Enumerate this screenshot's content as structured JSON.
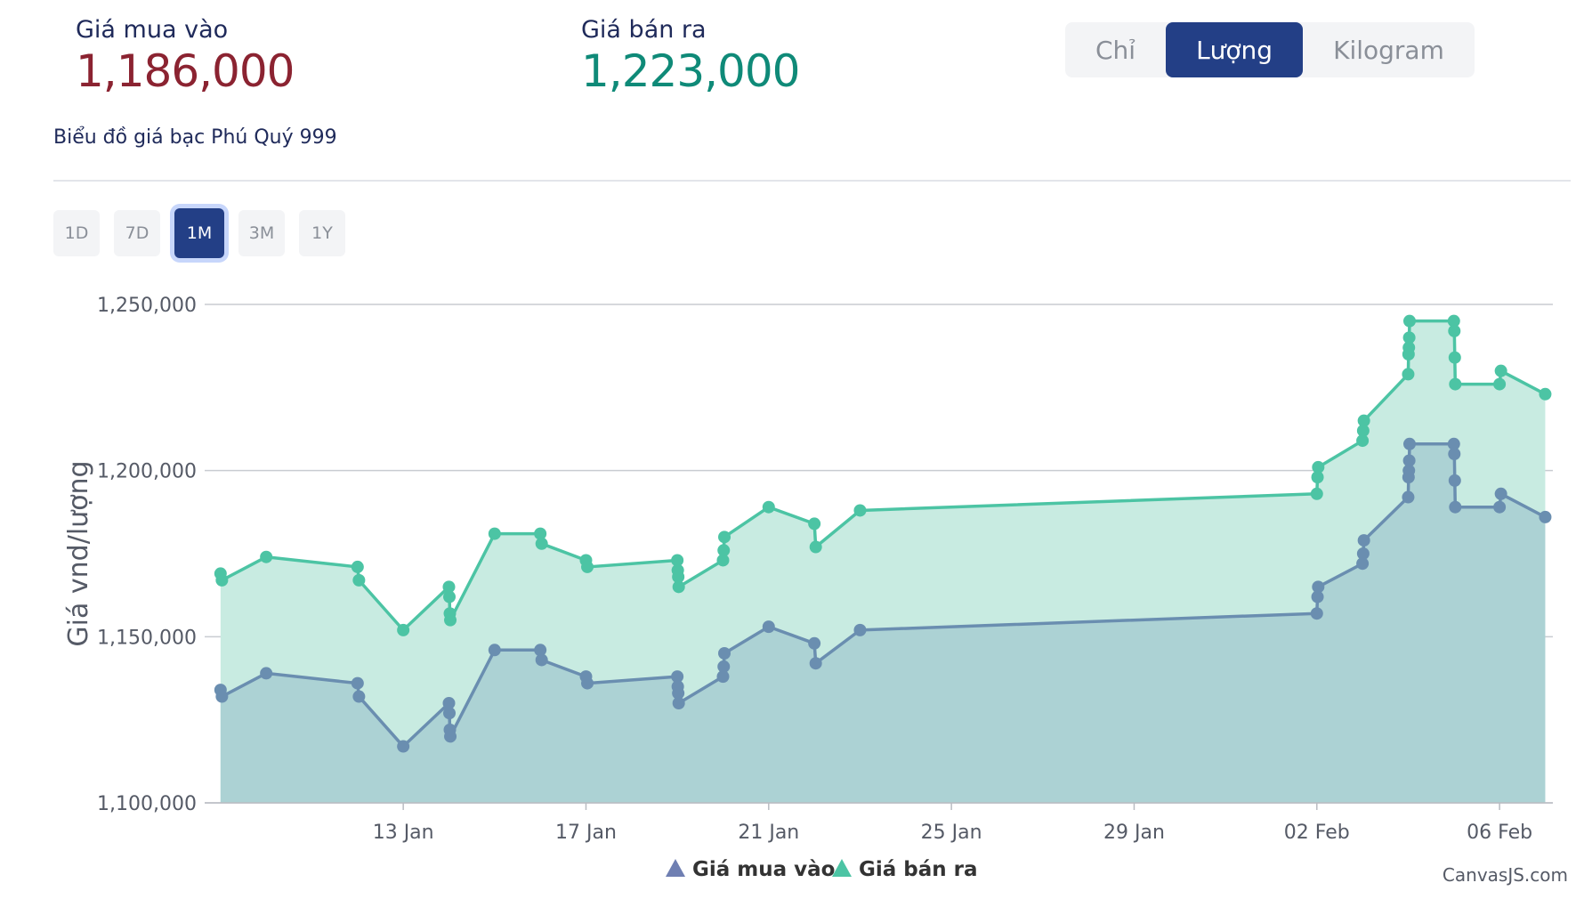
{
  "buy": {
    "label": "Giá mua vào",
    "value": "1,186,000"
  },
  "sell": {
    "label": "Giá bán ra",
    "value": "1,223,000"
  },
  "units": [
    {
      "label": "Chỉ",
      "active": false
    },
    {
      "label": "Lượng",
      "active": true
    },
    {
      "label": "Kilogram",
      "active": false
    }
  ],
  "chart_title": "Biểu đồ giá bạc Phú Quý 999",
  "ranges": [
    {
      "label": "1D",
      "active": false
    },
    {
      "label": "7D",
      "active": false
    },
    {
      "label": "1M",
      "active": true
    },
    {
      "label": "3M",
      "active": false
    },
    {
      "label": "1Y",
      "active": false
    }
  ],
  "credit": "CanvasJS.com",
  "colors": {
    "buy": "#6a8eb0",
    "buy_fill": "#a9cfd3",
    "sell": "#4cc4a4",
    "sell_fill": "#c8ebe1",
    "buy_legend": "#6f7fb2"
  },
  "chart_data": {
    "type": "area",
    "ylabel": "Giá vnd/lượng",
    "ylim": [
      1100000,
      1250000
    ],
    "yticks": [
      "1,100,000",
      "1,150,000",
      "1,200,000",
      "1,250,000"
    ],
    "xticks": [
      "13 Jan",
      "17 Jan",
      "21 Jan",
      "25 Jan",
      "29 Jan",
      "02 Feb",
      "06 Feb"
    ],
    "legend": [
      "Giá mua vào",
      "Giá bán ra"
    ],
    "legend_position": "bottom",
    "grid": true,
    "series": [
      {
        "name": "Giá mua vào",
        "points": [
          [
            "2026-01-09",
            1134000
          ],
          [
            "2026-01-09",
            1132000
          ],
          [
            "2026-01-10",
            1139000
          ],
          [
            "2026-01-12",
            1136000
          ],
          [
            "2026-01-12",
            1132000
          ],
          [
            "2026-01-13",
            1117000
          ],
          [
            "2026-01-14",
            1130000
          ],
          [
            "2026-01-14",
            1127000
          ],
          [
            "2026-01-14",
            1122000
          ],
          [
            "2026-01-14",
            1120000
          ],
          [
            "2026-01-15",
            1146000
          ],
          [
            "2026-01-16",
            1146000
          ],
          [
            "2026-01-16",
            1143000
          ],
          [
            "2026-01-17",
            1138000
          ],
          [
            "2026-01-17",
            1136000
          ],
          [
            "2026-01-19",
            1138000
          ],
          [
            "2026-01-19",
            1135000
          ],
          [
            "2026-01-19",
            1133000
          ],
          [
            "2026-01-19",
            1130000
          ],
          [
            "2026-01-20",
            1138000
          ],
          [
            "2026-01-20",
            1141000
          ],
          [
            "2026-01-20",
            1145000
          ],
          [
            "2026-01-21",
            1153000
          ],
          [
            "2026-01-22",
            1148000
          ],
          [
            "2026-01-22",
            1142000
          ],
          [
            "2026-01-23",
            1152000
          ],
          [
            "2026-02-02",
            1157000
          ],
          [
            "2026-02-02",
            1162000
          ],
          [
            "2026-02-02",
            1165000
          ],
          [
            "2026-02-03",
            1172000
          ],
          [
            "2026-02-03",
            1175000
          ],
          [
            "2026-02-03",
            1179000
          ],
          [
            "2026-02-04",
            1192000
          ],
          [
            "2026-02-04",
            1198000
          ],
          [
            "2026-02-04",
            1200000
          ],
          [
            "2026-02-04",
            1203000
          ],
          [
            "2026-02-04",
            1208000
          ],
          [
            "2026-02-05",
            1208000
          ],
          [
            "2026-02-05",
            1205000
          ],
          [
            "2026-02-05",
            1197000
          ],
          [
            "2026-02-05",
            1189000
          ],
          [
            "2026-02-06",
            1189000
          ],
          [
            "2026-02-06",
            1193000
          ],
          [
            "2026-02-07",
            1186000
          ]
        ]
      },
      {
        "name": "Giá bán ra",
        "points": [
          [
            "2026-01-09",
            1169000
          ],
          [
            "2026-01-09",
            1167000
          ],
          [
            "2026-01-10",
            1174000
          ],
          [
            "2026-01-12",
            1171000
          ],
          [
            "2026-01-12",
            1167000
          ],
          [
            "2026-01-13",
            1152000
          ],
          [
            "2026-01-14",
            1165000
          ],
          [
            "2026-01-14",
            1162000
          ],
          [
            "2026-01-14",
            1157000
          ],
          [
            "2026-01-14",
            1155000
          ],
          [
            "2026-01-15",
            1181000
          ],
          [
            "2026-01-16",
            1181000
          ],
          [
            "2026-01-16",
            1178000
          ],
          [
            "2026-01-17",
            1173000
          ],
          [
            "2026-01-17",
            1171000
          ],
          [
            "2026-01-19",
            1173000
          ],
          [
            "2026-01-19",
            1170000
          ],
          [
            "2026-01-19",
            1168000
          ],
          [
            "2026-01-19",
            1165000
          ],
          [
            "2026-01-20",
            1173000
          ],
          [
            "2026-01-20",
            1176000
          ],
          [
            "2026-01-20",
            1180000
          ],
          [
            "2026-01-21",
            1189000
          ],
          [
            "2026-01-22",
            1184000
          ],
          [
            "2026-01-22",
            1177000
          ],
          [
            "2026-01-23",
            1188000
          ],
          [
            "2026-02-02",
            1193000
          ],
          [
            "2026-02-02",
            1198000
          ],
          [
            "2026-02-02",
            1201000
          ],
          [
            "2026-02-03",
            1209000
          ],
          [
            "2026-02-03",
            1212000
          ],
          [
            "2026-02-03",
            1215000
          ],
          [
            "2026-02-04",
            1229000
          ],
          [
            "2026-02-04",
            1235000
          ],
          [
            "2026-02-04",
            1237000
          ],
          [
            "2026-02-04",
            1240000
          ],
          [
            "2026-02-04",
            1245000
          ],
          [
            "2026-02-05",
            1245000
          ],
          [
            "2026-02-05",
            1242000
          ],
          [
            "2026-02-05",
            1234000
          ],
          [
            "2026-02-05",
            1226000
          ],
          [
            "2026-02-06",
            1226000
          ],
          [
            "2026-02-06",
            1230000
          ],
          [
            "2026-02-07",
            1223000
          ]
        ]
      }
    ]
  }
}
